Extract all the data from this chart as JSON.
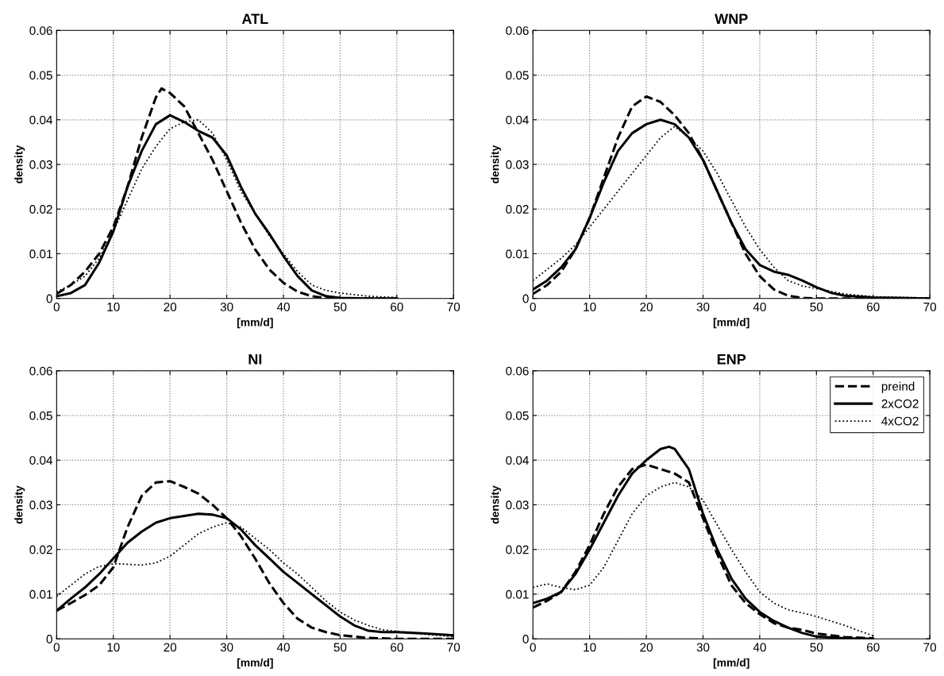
{
  "chart_data": [
    {
      "type": "line",
      "title": "ATL",
      "xlabel": "[mm/d]",
      "ylabel": "density",
      "xlim": [
        0,
        70
      ],
      "xticks": [
        0,
        10,
        20,
        30,
        40,
        50,
        60,
        70
      ],
      "ylim": [
        0,
        0.06
      ],
      "yticks": [
        0,
        0.01,
        0.02,
        0.03,
        0.04,
        0.05,
        0.06
      ],
      "grid": true,
      "legend": false,
      "series": [
        {
          "color": "#000000",
          "line_style": "dashed",
          "x": [
            0,
            2.5,
            5,
            7.5,
            10,
            12.5,
            15,
            17.5,
            18.5,
            20,
            22.5,
            25,
            27.5,
            30,
            32.5,
            35,
            37.5,
            40,
            42.5,
            45,
            47.5,
            50,
            55,
            60
          ],
          "values": [
            0.001,
            0.003,
            0.006,
            0.01,
            0.016,
            0.025,
            0.036,
            0.045,
            0.047,
            0.046,
            0.043,
            0.037,
            0.031,
            0.024,
            0.017,
            0.011,
            0.0065,
            0.0035,
            0.0015,
            0.0005,
            0.0001,
            0,
            0,
            0
          ]
        },
        {
          "color": "#000000",
          "line_style": "solid",
          "x": [
            0,
            2.5,
            5,
            7.5,
            10,
            12.5,
            15,
            17.5,
            20,
            22.5,
            25,
            27.5,
            30,
            32.5,
            35,
            37.5,
            40,
            42.5,
            45,
            47.5,
            50,
            55,
            60
          ],
          "values": [
            0.0005,
            0.0012,
            0.003,
            0.008,
            0.015,
            0.025,
            0.033,
            0.039,
            0.041,
            0.0395,
            0.0375,
            0.036,
            0.032,
            0.025,
            0.019,
            0.0145,
            0.0095,
            0.005,
            0.0018,
            0.0005,
            0.0001,
            0,
            0
          ]
        },
        {
          "color": "#000000",
          "line_style": "dotted",
          "x": [
            0,
            2.5,
            5,
            7.5,
            10,
            12.5,
            15,
            17.5,
            20,
            22.5,
            25,
            27.5,
            30,
            32.5,
            35,
            37.5,
            40,
            42.5,
            45,
            47.5,
            50,
            55,
            60
          ],
          "values": [
            0.0015,
            0.003,
            0.005,
            0.009,
            0.015,
            0.022,
            0.029,
            0.034,
            0.038,
            0.0395,
            0.04,
            0.037,
            0.031,
            0.024,
            0.019,
            0.014,
            0.01,
            0.006,
            0.003,
            0.0018,
            0.0012,
            0.0005,
            0.0002
          ]
        }
      ]
    },
    {
      "type": "line",
      "title": "WNP",
      "xlabel": "[mm/d]",
      "ylabel": "density",
      "xlim": [
        0,
        70
      ],
      "xticks": [
        0,
        10,
        20,
        30,
        40,
        50,
        60,
        70
      ],
      "ylim": [
        0,
        0.06
      ],
      "yticks": [
        0,
        0.01,
        0.02,
        0.03,
        0.04,
        0.05,
        0.06
      ],
      "grid": true,
      "legend": false,
      "series": [
        {
          "color": "#000000",
          "line_style": "dashed",
          "x": [
            0,
            2.5,
            5,
            7.5,
            10,
            12.5,
            15,
            17.5,
            20,
            22.5,
            25,
            27.5,
            30,
            32.5,
            35,
            37.5,
            40,
            42.5,
            45,
            47.5,
            50,
            60,
            70
          ],
          "values": [
            0.001,
            0.003,
            0.006,
            0.011,
            0.018,
            0.027,
            0.036,
            0.043,
            0.0452,
            0.044,
            0.041,
            0.037,
            0.031,
            0.024,
            0.017,
            0.01,
            0.005,
            0.002,
            0.0006,
            0.0001,
            0,
            0,
            0
          ]
        },
        {
          "color": "#000000",
          "line_style": "solid",
          "x": [
            0,
            2.5,
            5,
            7.5,
            10,
            12.5,
            15,
            17.5,
            20,
            22.5,
            25,
            27.5,
            30,
            32.5,
            35,
            37.5,
            40,
            42.5,
            45,
            47.5,
            50,
            52.5,
            55,
            60,
            70
          ],
          "values": [
            0.002,
            0.004,
            0.007,
            0.011,
            0.018,
            0.026,
            0.033,
            0.037,
            0.039,
            0.04,
            0.039,
            0.036,
            0.031,
            0.024,
            0.017,
            0.011,
            0.0075,
            0.006,
            0.0053,
            0.004,
            0.0025,
            0.0013,
            0.0006,
            0.0002,
            0
          ]
        },
        {
          "color": "#000000",
          "line_style": "dotted",
          "x": [
            0,
            2.5,
            5,
            7.5,
            10,
            12.5,
            15,
            17.5,
            20,
            22.5,
            25,
            27.5,
            30,
            32.5,
            35,
            37.5,
            40,
            42.5,
            45,
            47.5,
            50,
            55,
            60,
            70
          ],
          "values": [
            0.004,
            0.0065,
            0.009,
            0.012,
            0.016,
            0.02,
            0.024,
            0.028,
            0.032,
            0.036,
            0.0385,
            0.036,
            0.033,
            0.028,
            0.022,
            0.016,
            0.011,
            0.007,
            0.004,
            0.0028,
            0.0022,
            0.001,
            0.0004,
            0.0001
          ]
        }
      ]
    },
    {
      "type": "line",
      "title": "NI",
      "xlabel": "[mm/d]",
      "ylabel": "density",
      "xlim": [
        0,
        70
      ],
      "xticks": [
        0,
        10,
        20,
        30,
        40,
        50,
        60,
        70
      ],
      "ylim": [
        0,
        0.06
      ],
      "yticks": [
        0,
        0.01,
        0.02,
        0.03,
        0.04,
        0.05,
        0.06
      ],
      "grid": true,
      "legend": false,
      "series": [
        {
          "color": "#000000",
          "line_style": "dashed",
          "x": [
            0,
            2.5,
            5,
            7.5,
            10,
            12.5,
            15,
            17.5,
            20,
            22.5,
            25,
            27.5,
            30,
            32.5,
            35,
            37.5,
            40,
            42.5,
            45,
            47.5,
            50,
            55,
            60,
            70
          ],
          "values": [
            0.0063,
            0.008,
            0.0098,
            0.012,
            0.016,
            0.025,
            0.032,
            0.035,
            0.0353,
            0.034,
            0.0325,
            0.03,
            0.027,
            0.023,
            0.018,
            0.0125,
            0.008,
            0.0045,
            0.0025,
            0.0015,
            0.0008,
            0.0002,
            0,
            0
          ]
        },
        {
          "color": "#000000",
          "line_style": "solid",
          "x": [
            0,
            2.5,
            5,
            7.5,
            10,
            12.5,
            15,
            17.5,
            20,
            22.5,
            25,
            27.5,
            30,
            32.5,
            35,
            37.5,
            40,
            42.5,
            45,
            47.5,
            50,
            52.5,
            55,
            57.5,
            60,
            65,
            70
          ],
          "values": [
            0.0063,
            0.009,
            0.0115,
            0.0145,
            0.018,
            0.0215,
            0.024,
            0.026,
            0.027,
            0.0275,
            0.028,
            0.0278,
            0.027,
            0.0245,
            0.021,
            0.018,
            0.015,
            0.0125,
            0.01,
            0.0075,
            0.005,
            0.003,
            0.0018,
            0.0015,
            0.0015,
            0.0012,
            0.0008
          ]
        },
        {
          "color": "#000000",
          "line_style": "dotted",
          "x": [
            0,
            2.5,
            5,
            7.5,
            10,
            12.5,
            15,
            17.5,
            20,
            22.5,
            25,
            27.5,
            30,
            32.5,
            35,
            37.5,
            40,
            42.5,
            45,
            47.5,
            50,
            52.5,
            55,
            57.5,
            60,
            65,
            70
          ],
          "values": [
            0.0095,
            0.012,
            0.0145,
            0.0162,
            0.0168,
            0.0167,
            0.0165,
            0.017,
            0.0185,
            0.021,
            0.0235,
            0.025,
            0.026,
            0.025,
            0.0225,
            0.02,
            0.017,
            0.0145,
            0.0115,
            0.0085,
            0.006,
            0.0042,
            0.003,
            0.002,
            0.0017,
            0.001,
            0.0005
          ]
        }
      ]
    },
    {
      "type": "line",
      "title": "ENP",
      "xlabel": "[mm/d]",
      "ylabel": "density",
      "xlim": [
        0,
        70
      ],
      "xticks": [
        0,
        10,
        20,
        30,
        40,
        50,
        60,
        70
      ],
      "ylim": [
        0,
        0.06
      ],
      "yticks": [
        0,
        0.01,
        0.02,
        0.03,
        0.04,
        0.05,
        0.06
      ],
      "grid": true,
      "legend": "top right",
      "series": [
        {
          "name": "preind",
          "color": "#000000",
          "line_style": "dashed",
          "x": [
            0,
            2.5,
            5,
            7.5,
            10,
            12.5,
            15,
            17.5,
            20,
            22.5,
            25,
            27.5,
            30,
            32.5,
            35,
            37.5,
            40,
            42.5,
            45,
            47.5,
            50,
            55,
            60
          ],
          "values": [
            0.007,
            0.0085,
            0.0105,
            0.015,
            0.021,
            0.028,
            0.034,
            0.038,
            0.039,
            0.038,
            0.037,
            0.035,
            0.027,
            0.019,
            0.012,
            0.008,
            0.0055,
            0.0035,
            0.0025,
            0.002,
            0.0012,
            0.0004,
            0.0001
          ]
        },
        {
          "name": "2xCO2",
          "color": "#000000",
          "line_style": "solid",
          "x": [
            0,
            2.5,
            5,
            7.5,
            10,
            12.5,
            15,
            17.5,
            20,
            22.5,
            24,
            25,
            27.5,
            30,
            32.5,
            35,
            37.5,
            40,
            42.5,
            45,
            47.5,
            50,
            55,
            60
          ],
          "values": [
            0.008,
            0.009,
            0.0105,
            0.0145,
            0.02,
            0.026,
            0.032,
            0.037,
            0.04,
            0.0425,
            0.043,
            0.0425,
            0.038,
            0.028,
            0.02,
            0.0135,
            0.009,
            0.006,
            0.004,
            0.0025,
            0.0013,
            0.0005,
            0.0001,
            0
          ]
        },
        {
          "name": "4xCO2",
          "color": "#000000",
          "line_style": "dotted",
          "x": [
            0,
            2.5,
            5,
            7.5,
            10,
            12.5,
            15,
            17.5,
            20,
            22.5,
            25,
            27.5,
            30,
            32.5,
            35,
            37.5,
            40,
            42.5,
            45,
            47.5,
            50,
            52.5,
            55,
            57.5,
            60
          ],
          "values": [
            0.0115,
            0.0123,
            0.0115,
            0.011,
            0.012,
            0.016,
            0.022,
            0.028,
            0.032,
            0.034,
            0.035,
            0.034,
            0.031,
            0.0255,
            0.02,
            0.015,
            0.0105,
            0.008,
            0.0065,
            0.0058,
            0.005,
            0.004,
            0.003,
            0.0018,
            0.0007
          ]
        }
      ]
    }
  ]
}
